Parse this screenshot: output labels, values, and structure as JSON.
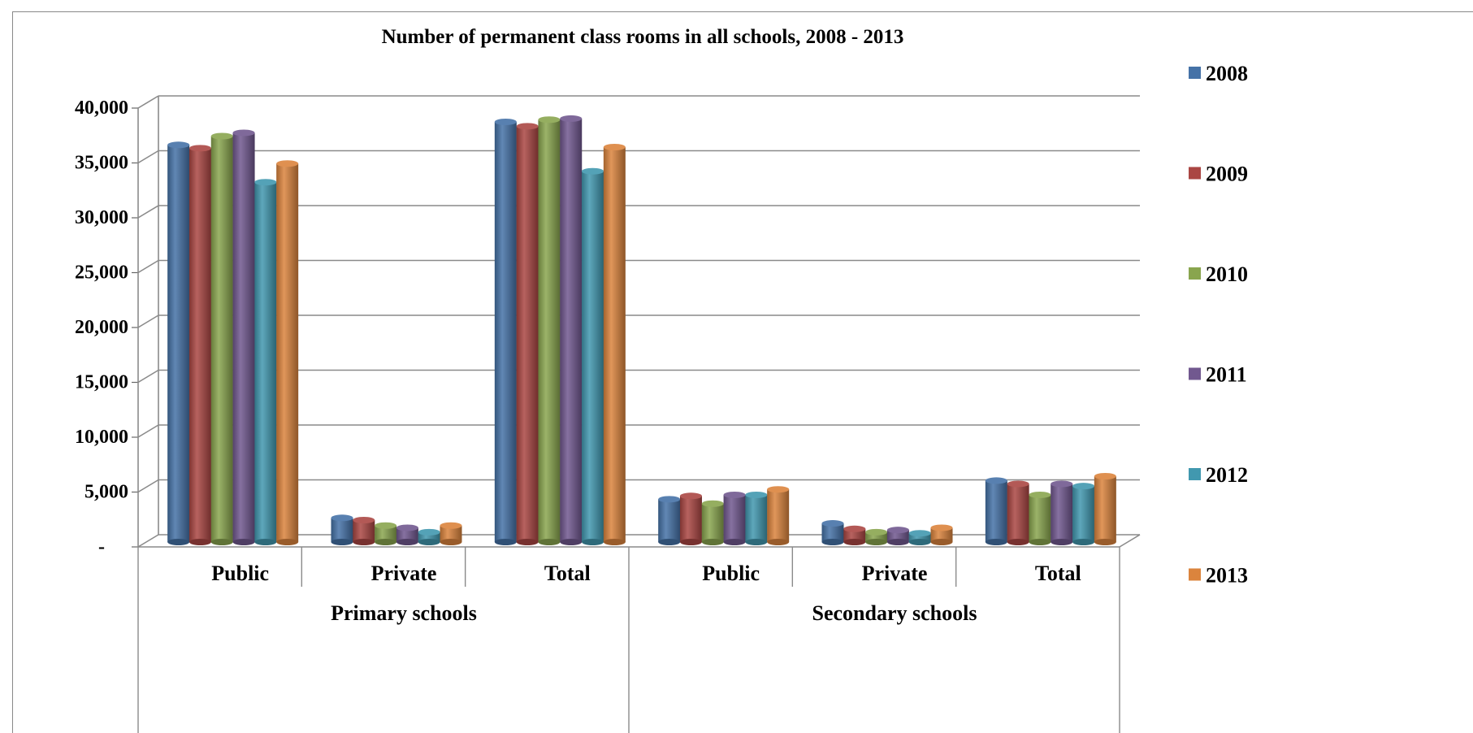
{
  "chart_data": {
    "type": "bar",
    "title": "Number of permanent class rooms in all schools, 2008 - 2013",
    "xlabel": "",
    "ylabel": "",
    "ylim": [
      0,
      40000
    ],
    "y_ticks": [
      {
        "value": 0,
        "label": "-"
      },
      {
        "value": 5000,
        "label": "5,000"
      },
      {
        "value": 10000,
        "label": "10,000"
      },
      {
        "value": 15000,
        "label": "15,000"
      },
      {
        "value": 20000,
        "label": "20,000"
      },
      {
        "value": 25000,
        "label": "25,000"
      },
      {
        "value": 30000,
        "label": "30,000"
      },
      {
        "value": 35000,
        "label": "35,000"
      },
      {
        "value": 40000,
        "label": "40,000"
      }
    ],
    "groups": [
      {
        "label": "Primary schools",
        "categories": [
          "Public",
          "Private",
          "Total"
        ]
      },
      {
        "label": "Secondary schools",
        "categories": [
          "Public",
          "Private",
          "Total"
        ]
      }
    ],
    "categories": [
      "Public",
      "Private",
      "Total",
      "Public",
      "Private",
      "Total"
    ],
    "series": [
      {
        "name": "2008",
        "color": "#4572A7",
        "values": [
          36200,
          2200,
          38300,
          3900,
          1700,
          5600
        ]
      },
      {
        "name": "2009",
        "color": "#AA4643",
        "values": [
          35900,
          2000,
          37900,
          4200,
          1200,
          5300
        ]
      },
      {
        "name": "2010",
        "color": "#89A54E",
        "values": [
          37000,
          1500,
          38500,
          3500,
          900,
          4300
        ]
      },
      {
        "name": "2011",
        "color": "#71588F",
        "values": [
          37300,
          1300,
          38600,
          4300,
          1100,
          5300
        ]
      },
      {
        "name": "2012",
        "color": "#4198AF",
        "values": [
          32800,
          900,
          33800,
          4300,
          800,
          5100
        ]
      },
      {
        "name": "2013",
        "color": "#DB843D",
        "values": [
          34500,
          1500,
          36000,
          4800,
          1300,
          6000
        ]
      }
    ],
    "grid": true,
    "legend_position": "right"
  }
}
